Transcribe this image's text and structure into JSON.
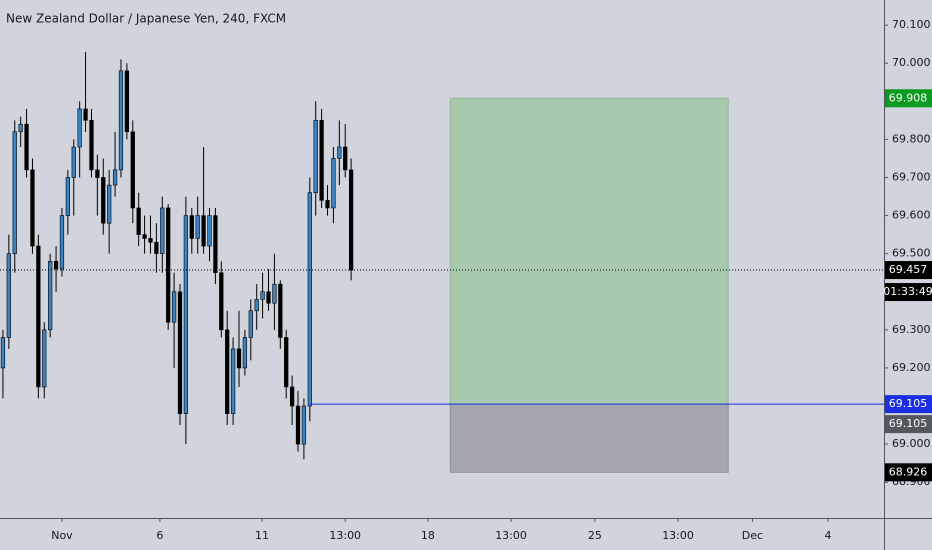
{
  "chart_data": {
    "type": "candlestick",
    "title": "New Zealand Dollar / Japanese Yen, 240, FXCM",
    "up_color": "#3b84c4",
    "down_color": "#000000",
    "candles": [
      [
        69.2,
        69.3,
        69.12,
        69.28
      ],
      [
        69.28,
        69.55,
        69.25,
        69.5
      ],
      [
        69.5,
        69.85,
        69.45,
        69.82
      ],
      [
        69.82,
        69.86,
        69.78,
        69.84
      ],
      [
        69.84,
        69.88,
        69.7,
        69.72
      ],
      [
        69.72,
        69.75,
        69.5,
        69.52
      ],
      [
        69.52,
        69.55,
        69.12,
        69.15
      ],
      [
        69.15,
        69.32,
        69.12,
        69.3
      ],
      [
        69.3,
        69.5,
        69.28,
        69.48
      ],
      [
        69.48,
        69.52,
        69.4,
        69.46
      ],
      [
        69.46,
        69.62,
        69.44,
        69.6
      ],
      [
        69.6,
        69.72,
        69.55,
        69.7
      ],
      [
        69.7,
        69.8,
        69.6,
        69.78
      ],
      [
        69.78,
        69.9,
        69.7,
        69.88
      ],
      [
        69.88,
        70.03,
        69.82,
        69.85
      ],
      [
        69.85,
        69.88,
        69.7,
        69.72
      ],
      [
        69.72,
        69.76,
        69.6,
        69.7
      ],
      [
        69.7,
        69.75,
        69.55,
        69.58
      ],
      [
        69.58,
        69.72,
        69.5,
        69.68
      ],
      [
        69.68,
        69.82,
        69.65,
        69.72
      ],
      [
        69.72,
        70.01,
        69.7,
        69.98
      ],
      [
        69.98,
        70.0,
        69.8,
        69.82
      ],
      [
        69.82,
        69.85,
        69.58,
        69.62
      ],
      [
        69.62,
        69.66,
        69.52,
        69.55
      ],
      [
        69.55,
        69.6,
        69.5,
        69.54
      ],
      [
        69.54,
        69.6,
        69.5,
        69.53
      ],
      [
        69.53,
        69.58,
        69.45,
        69.5
      ],
      [
        69.5,
        69.65,
        69.45,
        69.62
      ],
      [
        69.62,
        69.63,
        69.3,
        69.32
      ],
      [
        69.32,
        69.45,
        69.2,
        69.4
      ],
      [
        69.4,
        69.42,
        69.05,
        69.08
      ],
      [
        69.08,
        69.65,
        69.0,
        69.6
      ],
      [
        69.6,
        69.62,
        69.5,
        69.54
      ],
      [
        69.54,
        69.65,
        69.5,
        69.6
      ],
      [
        69.6,
        69.78,
        69.5,
        69.52
      ],
      [
        69.52,
        69.62,
        69.48,
        69.6
      ],
      [
        69.6,
        69.62,
        69.42,
        69.45
      ],
      [
        69.45,
        69.48,
        69.28,
        69.3
      ],
      [
        69.3,
        69.35,
        69.05,
        69.08
      ],
      [
        69.08,
        69.28,
        69.05,
        69.25
      ],
      [
        69.25,
        69.35,
        69.15,
        69.2
      ],
      [
        69.2,
        69.3,
        69.18,
        69.28
      ],
      [
        69.28,
        69.38,
        69.22,
        69.35
      ],
      [
        69.35,
        69.42,
        69.3,
        69.38
      ],
      [
        69.38,
        69.45,
        69.33,
        69.4
      ],
      [
        69.4,
        69.46,
        69.35,
        69.37
      ],
      [
        69.37,
        69.5,
        69.3,
        69.42
      ],
      [
        69.42,
        69.43,
        69.25,
        69.28
      ],
      [
        69.28,
        69.3,
        69.12,
        69.15
      ],
      [
        69.15,
        69.18,
        69.05,
        69.1
      ],
      [
        69.1,
        69.14,
        68.98,
        69.0
      ],
      [
        69.0,
        69.12,
        68.96,
        69.1
      ],
      [
        69.1,
        69.7,
        69.06,
        69.66
      ],
      [
        69.66,
        69.9,
        69.6,
        69.85
      ],
      [
        69.85,
        69.88,
        69.62,
        69.64
      ],
      [
        69.64,
        69.68,
        69.6,
        69.62
      ],
      [
        69.62,
        69.78,
        69.58,
        69.75
      ],
      [
        69.75,
        69.85,
        69.68,
        69.78
      ],
      [
        69.78,
        69.84,
        69.7,
        69.72
      ],
      [
        69.72,
        69.75,
        69.43,
        69.457
      ]
    ],
    "xlim": [
      -0.5,
      149.3
    ],
    "xticks": [
      {
        "value": 10,
        "label": "Nov"
      },
      {
        "value": 26.6,
        "label": "6"
      },
      {
        "value": 43.9,
        "label": "11"
      },
      {
        "value": 58,
        "label": "13:00"
      },
      {
        "value": 72,
        "label": "18"
      },
      {
        "value": 86.1,
        "label": "13:00"
      },
      {
        "value": 100.3,
        "label": "25"
      },
      {
        "value": 114.4,
        "label": "13:00"
      },
      {
        "value": 127,
        "label": "Dec"
      },
      {
        "value": 139.8,
        "label": "4"
      }
    ],
    "ylim": [
      68.806,
      70.166
    ],
    "yticks": [
      {
        "value": 70.1,
        "label": "70.100"
      },
      {
        "value": 70.0,
        "label": "70.000"
      },
      {
        "value": 69.8,
        "label": "69.800"
      },
      {
        "value": 69.7,
        "label": "69.700"
      },
      {
        "value": 69.6,
        "label": "69.600"
      },
      {
        "value": 69.5,
        "label": "69.500"
      },
      {
        "value": 69.3,
        "label": "69.300"
      },
      {
        "value": 69.2,
        "label": "69.200"
      },
      {
        "value": 69.0,
        "label": "69.000"
      },
      {
        "value": 68.9,
        "label": "68.900"
      }
    ],
    "long_position": {
      "start": 75.8,
      "end": 122.9,
      "target": {
        "value": 69.908,
        "label": "69.908"
      },
      "entry": {
        "value": 69.105,
        "label": "69.105"
      },
      "stop": {
        "value": 68.926,
        "label": "68.926"
      }
    },
    "entry_line": {
      "start": 52,
      "value": 69.105,
      "label": "69.105",
      "color": "#1a2ee6"
    },
    "last_price": {
      "value": 69.457,
      "label": "69.457"
    },
    "countdown": "01:33:49"
  }
}
